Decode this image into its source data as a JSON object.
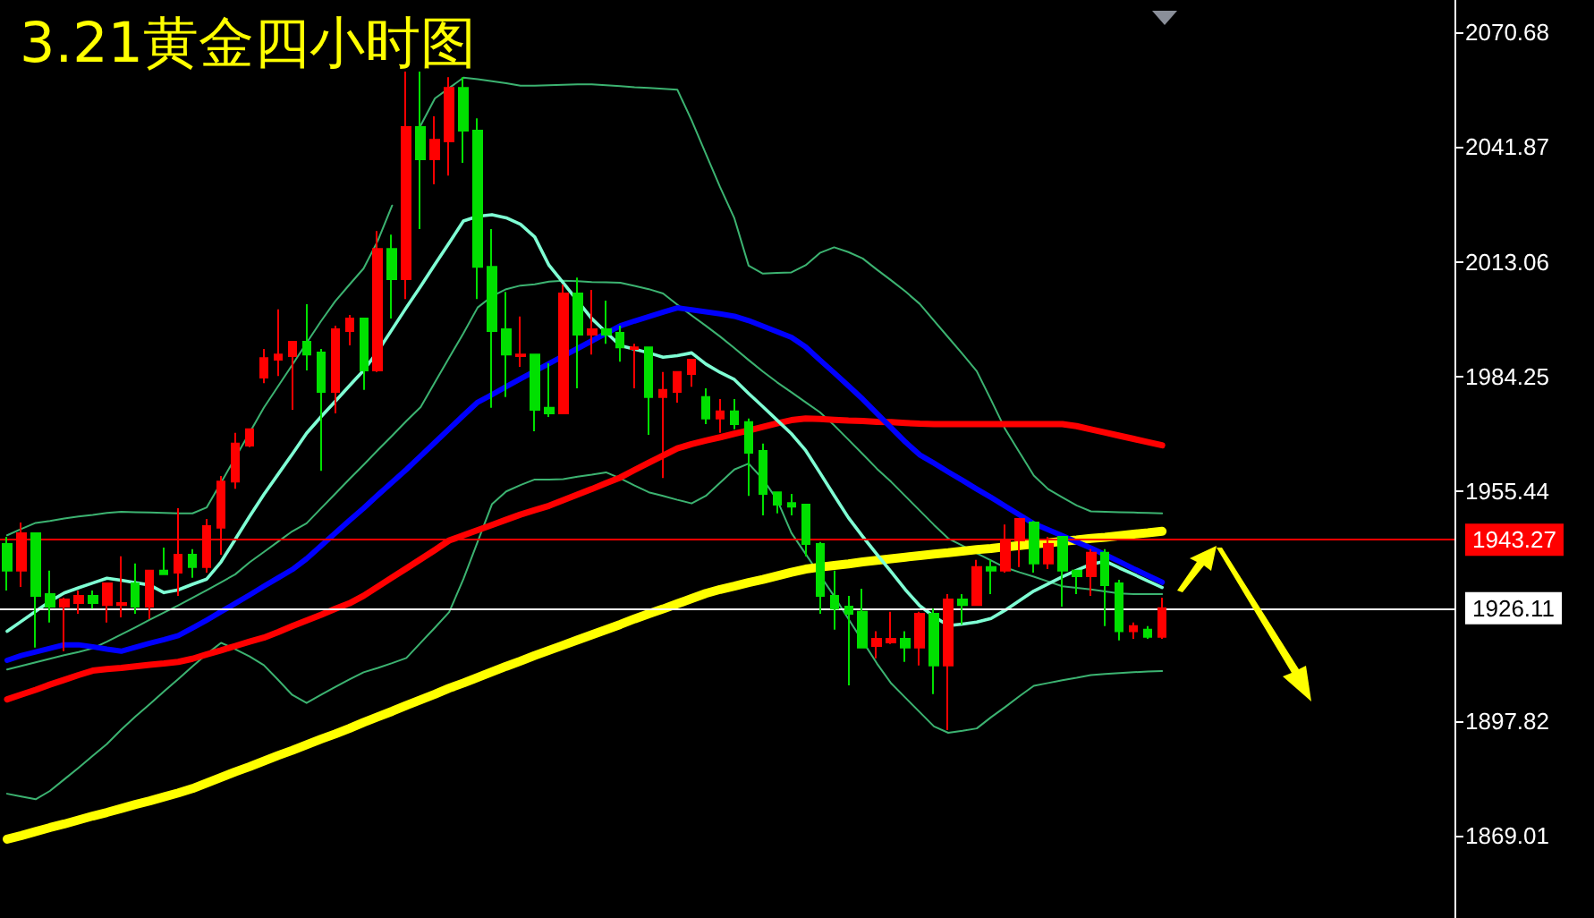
{
  "chart_data": {
    "type": "candlestick",
    "title": "3.21黄金四小时图",
    "categories": [
      null,
      null,
      null,
      null,
      null,
      null,
      null,
      null,
      null,
      null,
      null,
      null,
      null,
      null,
      null,
      null,
      null,
      null,
      null,
      null,
      null,
      null,
      null,
      null,
      null,
      null,
      null,
      null,
      null,
      null,
      null,
      null,
      null,
      null,
      null,
      null,
      null,
      null,
      null,
      null,
      null,
      null,
      null,
      null,
      null,
      null,
      null,
      null,
      null,
      null,
      null,
      null,
      null,
      null,
      null,
      null,
      null,
      null,
      null,
      null,
      null,
      null,
      null,
      null,
      null,
      null,
      null,
      null,
      null,
      null,
      null,
      null,
      null,
      null,
      null,
      null,
      null,
      null,
      null,
      null,
      null,
      null
    ],
    "ohlc": [
      [
        1942.2,
        1944.0,
        1930.5,
        1935.5
      ],
      [
        1935.5,
        1947.6,
        1931.4,
        1944.9
      ],
      [
        1944.9,
        1944.9,
        1916.2,
        1929.2
      ],
      [
        1929.6,
        1935.5,
        1922.5,
        1926.5
      ],
      [
        1926.5,
        1928.7,
        1915.3,
        1928.3
      ],
      [
        1927.4,
        1930.5,
        1924.7,
        1929.2
      ],
      [
        1929.2,
        1930.5,
        1926.0,
        1927.4
      ],
      [
        1926.9,
        1932.3,
        1922.5,
        1932.3
      ],
      [
        1926.9,
        1939.1,
        1923.8,
        1927.4
      ],
      [
        1932.3,
        1937.3,
        1924.7,
        1926.5
      ],
      [
        1926.5,
        1935.5,
        1923.4,
        1935.5
      ],
      [
        1935.5,
        1941.3,
        1934.6,
        1934.6
      ],
      [
        1935.0,
        1951.2,
        1929.2,
        1939.5
      ],
      [
        1939.5,
        1940.9,
        1933.7,
        1936.4
      ],
      [
        1936.4,
        1948.5,
        1935.0,
        1946.7
      ],
      [
        1946.3,
        1959.3,
        1939.5,
        1957.9
      ],
      [
        1957.9,
        1970.1,
        1956.1,
        1967.4
      ],
      [
        1966.9,
        1971.0,
        1966.5,
        1971.0
      ],
      [
        1984.0,
        1991.2,
        1982.6,
        1988.9
      ],
      [
        1988.5,
        2001.1,
        1984.4,
        1989.8
      ],
      [
        1989.4,
        1993.0,
        1975.9,
        1993.0
      ],
      [
        1993.0,
        2002.4,
        1985.8,
        1989.8
      ],
      [
        1990.3,
        1991.2,
        1960.6,
        1980.4
      ],
      [
        1980.4,
        1997.0,
        1975.0,
        1996.1
      ],
      [
        1995.7,
        1999.7,
        1992.1,
        1998.8
      ],
      [
        1998.8,
        1998.8,
        1980.9,
        1985.8
      ],
      [
        1985.8,
        2020.8,
        1985.4,
        2016.3
      ],
      [
        2016.3,
        2019.9,
        1998.8,
        2008.7
      ],
      [
        2008.7,
        2060.8,
        2003.7,
        2046.9
      ],
      [
        2046.9,
        2060.8,
        2021.3,
        2038.8
      ],
      [
        2038.8,
        2049.6,
        2032.5,
        2043.7
      ],
      [
        2043.3,
        2059.4,
        2034.7,
        2056.7
      ],
      [
        2056.7,
        2059.4,
        2037.9,
        2046.0
      ],
      [
        2046.0,
        2049.1,
        2003.7,
        2011.8
      ],
      [
        2011.8,
        2021.3,
        1976.4,
        1995.7
      ],
      [
        1996.1,
        2005.5,
        1979.1,
        1989.8
      ],
      [
        1989.4,
        1999.3,
        1986.7,
        1989.8
      ],
      [
        1989.8,
        1989.8,
        1970.5,
        1975.9
      ],
      [
        1976.4,
        1987.6,
        1974.1,
        1975.0
      ],
      [
        1975.0,
        2007.3,
        1975.0,
        2005.1
      ],
      [
        2005.1,
        2009.1,
        1981.3,
        1994.8
      ],
      [
        1994.8,
        2006.0,
        1989.8,
        1996.1
      ],
      [
        1996.1,
        2003.3,
        1992.5,
        1994.8
      ],
      [
        1995.2,
        1997.0,
        1988.0,
        1991.6
      ],
      [
        1991.2,
        1992.5,
        1981.3,
        1991.6
      ],
      [
        1991.6,
        1991.6,
        1969.6,
        1979.1
      ],
      [
        1979.1,
        1985.4,
        1958.8,
        1980.9
      ],
      [
        1980.4,
        1985.4,
        1977.7,
        1985.4
      ],
      [
        1984.9,
        1988.5,
        1981.7,
        1988.5
      ],
      [
        1979.1,
        1981.3,
        1972.3,
        1973.7
      ],
      [
        1973.7,
        1978.6,
        1970.1,
        1975.5
      ],
      [
        1975.5,
        1978.6,
        1971.0,
        1972.3
      ],
      [
        1972.8,
        1973.7,
        1954.3,
        1965.1
      ],
      [
        1965.6,
        1967.4,
        1949.4,
        1954.8
      ],
      [
        1955.2,
        1955.2,
        1949.9,
        1952.1
      ],
      [
        1952.5,
        1954.8,
        1949.4,
        1951.6
      ],
      [
        1952.1,
        1952.1,
        1939.1,
        1942.2
      ],
      [
        1942.2,
        1942.7,
        1924.7,
        1929.2
      ],
      [
        1929.2,
        1935.5,
        1920.7,
        1926.0
      ],
      [
        1926.5,
        1929.2,
        1906.7,
        1924.7
      ],
      [
        1925.2,
        1931.0,
        1916.2,
        1916.2
      ],
      [
        1916.6,
        1920.3,
        1913.5,
        1918.4
      ],
      [
        1917.5,
        1925.2,
        1917.1,
        1918.4
      ],
      [
        1918.4,
        1920.3,
        1912.6,
        1916.2
      ],
      [
        1916.2,
        1925.2,
        1911.7,
        1924.7
      ],
      [
        1924.7,
        1926.0,
        1904.5,
        1911.7
      ],
      [
        1911.7,
        1929.6,
        1895.5,
        1928.3
      ],
      [
        1928.3,
        1929.6,
        1922.0,
        1926.9
      ],
      [
        1926.9,
        1938.2,
        1926.9,
        1936.4
      ],
      [
        1936.4,
        1938.2,
        1929.6,
        1935.5
      ],
      [
        1935.5,
        1947.1,
        1935.0,
        1943.1
      ],
      [
        1943.1,
        1948.5,
        1936.4,
        1948.5
      ],
      [
        1947.6,
        1948.0,
        1935.0,
        1937.3
      ],
      [
        1937.3,
        1944.0,
        1935.9,
        1942.2
      ],
      [
        1944.0,
        1944.0,
        1926.5,
        1935.5
      ],
      [
        1935.5,
        1935.5,
        1929.6,
        1934.1
      ],
      [
        1934.1,
        1940.9,
        1929.2,
        1940.0
      ],
      [
        1940.0,
        1940.9,
        1921.6,
        1931.9
      ],
      [
        1932.3,
        1933.2,
        1918.0,
        1920.3
      ],
      [
        1920.3,
        1922.5,
        1918.4,
        1921.6
      ],
      [
        1920.7,
        1921.6,
        1918.4,
        1918.9
      ],
      [
        1918.9,
        1928.7,
        1918.4,
        1926.1
      ]
    ],
    "series": [
      {
        "type": "line",
        "color": "#3cb371",
        "values": [
          1944.4,
          1946.0,
          1947.5,
          1948.0,
          1948.6,
          1949.1,
          1949.5,
          1950.0,
          1950.3,
          1950.2,
          1950.1,
          1950.0,
          1949.9,
          1949.9,
          1951.4,
          1957.6,
          1963.9,
          1970.1,
          1976.4,
          1981.8,
          1987.2,
          1992.7,
          1998.1,
          2003.1,
          2007.3,
          2011.4,
          2018.4,
          2027.2,
          null,
          2047.3,
          2054.1,
          2056.7,
          2059.3,
          2058.9,
          2058.4,
          2057.9,
          2057.3,
          2057.3,
          2057.4,
          2057.5,
          2057.6,
          2057.6,
          2057.4,
          2057.2,
          2056.9,
          2056.7,
          2056.5,
          2056.3,
          2048.6,
          2040.2,
          2031.8,
          2024.0,
          2012.1,
          2010.1,
          2010.3,
          2010.4,
          2012.2,
          2015.3,
          2016.7,
          2015.5,
          2013.9,
          2011.1,
          2008.4,
          2005.6,
          2002.5,
          1998.3,
          1994.1,
          1989.9,
          1985.6,
          1978.4,
          1971.0,
          1965.2,
          1959.4,
          1956.0,
          1953.9,
          1951.9,
          1950.4,
          1950.3,
          1950.2,
          1950.1,
          1950.0,
          1949.9
        ]
      },
      {
        "type": "line",
        "color": "#3cb371",
        "values": [
          1910.7,
          1911.6,
          1912.5,
          1913.4,
          1914.3,
          1915.1,
          1916.0,
          1917.7,
          1919.5,
          1921.3,
          1923.2,
          1925.0,
          1926.8,
          1928.7,
          1930.6,
          1932.6,
          1934.6,
          1937.6,
          1940.2,
          1942.8,
          1945.4,
          1947.4,
          1951.1,
          1954.8,
          1958.5,
          1962.1,
          1965.8,
          1969.4,
          1973.1,
          1976.6,
          1982.8,
          1989.0,
          1995.1,
          2001.6,
          2004.4,
          2006.2,
          2007.1,
          2007.4,
          2008.1,
          2008.3,
          2008.2,
          2008.0,
          2007.9,
          2007.8,
          2007.0,
          2006.2,
          2005.1,
          2002.3,
          1999.6,
          1997.0,
          1994.3,
          1991.4,
          1988.4,
          1985.5,
          1982.8,
          1980.3,
          1977.8,
          1975.3,
          1972.0,
          1968.4,
          1964.8,
          1961.1,
          1957.8,
          1954.2,
          1950.6,
          1947.0,
          1943.6,
          1941.8,
          1939.9,
          1938.1,
          1936.3,
          1935.1,
          1934.0,
          1932.8,
          1931.6,
          1931.2,
          1930.8,
          1930.3,
          1929.8,
          1929.6,
          1929.6,
          1929.6
        ]
      },
      {
        "type": "line",
        "color": "#3cb371",
        "values": [
          1879.5,
          1878.8,
          1878.1,
          1880.2,
          1883.1,
          1886.0,
          1889.0,
          1892.0,
          1895.6,
          1898.9,
          1902.0,
          1905.2,
          1908.3,
          1911.5,
          1914.6,
          1917.4,
          1915.8,
          1914.0,
          1911.8,
          1908.1,
          1904.3,
          1902.3,
          1904.3,
          1906.3,
          1908.2,
          1910.0,
          1911.1,
          1912.3,
          1913.6,
          1917.4,
          1921.2,
          1925.1,
          1933.4,
          1942.8,
          1952.2,
          1955.4,
          1957.0,
          1958.4,
          1958.4,
          1958.5,
          1959.1,
          1959.6,
          1960.2,
          1958.7,
          1956.9,
          1955.2,
          1954.3,
          1953.3,
          1952.4,
          1954.3,
          1957.6,
          1960.9,
          1962.4,
          1958.5,
          1953.3,
          1945.0,
          1939.7,
          1934.4,
          1929.1,
          1923.4,
          1917.8,
          1912.2,
          1907.2,
          1903.6,
          1900.0,
          1896.4,
          1894.8,
          1895.3,
          1895.9,
          1898.7,
          1901.3,
          1904.0,
          1906.6,
          1907.3,
          1908.0,
          1908.6,
          1909.3,
          1909.6,
          1909.8,
          1910.0,
          1910.2,
          1910.3
        ]
      },
      {
        "type": "line",
        "color": "#ffff00",
        "values": [
          1868.1,
          1869.0,
          1870.0,
          1871.0,
          1871.9,
          1872.9,
          1873.9,
          1874.8,
          1875.8,
          1876.8,
          1877.7,
          1878.7,
          1879.7,
          1880.8,
          1882.2,
          1883.6,
          1885.0,
          1886.3,
          1887.7,
          1889.1,
          1890.4,
          1891.8,
          1893.2,
          1894.5,
          1895.9,
          1897.4,
          1898.8,
          1900.2,
          1901.7,
          1903.1,
          1904.5,
          1906.0,
          1907.3,
          1908.7,
          1910.1,
          1911.5,
          1912.8,
          1914.2,
          1915.5,
          1916.8,
          1918.1,
          1919.4,
          1920.7,
          1922.0,
          1923.4,
          1924.7,
          1925.9,
          1927.2,
          1928.5,
          1929.8,
          1930.8,
          1931.6,
          1932.5,
          1933.3,
          1934.2,
          1935.1,
          1935.9,
          1936.4,
          1936.8,
          1937.2,
          1937.7,
          1938.1,
          1938.5,
          1938.9,
          1939.3,
          1939.7,
          1940.0,
          1940.4,
          1940.8,
          1941.1,
          1941.5,
          1941.8,
          1942.2,
          1942.5,
          1942.9,
          1943.2,
          1943.6,
          1943.9,
          1944.3,
          1944.7,
          1945.0,
          1945.4
        ]
      },
      {
        "type": "line",
        "color": "#ff0000",
        "values": [
          1903.2,
          1904.4,
          1905.6,
          1906.9,
          1908.1,
          1909.3,
          1910.4,
          1910.8,
          1911.1,
          1911.5,
          1911.9,
          1912.2,
          1912.6,
          1913.4,
          1914.5,
          1915.5,
          1916.6,
          1917.7,
          1918.7,
          1920.1,
          1921.6,
          1923.0,
          1924.4,
          1925.9,
          1927.3,
          1929.2,
          1931.5,
          1933.8,
          1936.1,
          1938.4,
          1940.7,
          1943.1,
          1944.4,
          1945.7,
          1947.0,
          1948.3,
          1949.6,
          1950.7,
          1951.8,
          1953.2,
          1954.6,
          1956.0,
          1957.5,
          1958.9,
          1960.8,
          1962.6,
          1964.4,
          1966.2,
          1967.3,
          1968.2,
          1969.0,
          1969.9,
          1970.7,
          1971.6,
          1972.5,
          1973.3,
          1973.7,
          1973.6,
          1973.4,
          1973.2,
          1973.1,
          1972.9,
          1972.8,
          1972.6,
          1972.4,
          1972.3,
          1972.3,
          1972.3,
          1972.3,
          1972.3,
          1972.3,
          1972.3,
          1972.3,
          1972.3,
          1972.3,
          1971.8,
          1971.0,
          1970.2,
          1969.4,
          1968.6,
          1967.8,
          1967.0
        ]
      },
      {
        "type": "line",
        "color": "#0000ff",
        "values": [
          1913.0,
          1914.2,
          1915.1,
          1916.0,
          1916.9,
          1916.9,
          1916.4,
          1915.8,
          1915.3,
          1916.3,
          1917.3,
          1918.2,
          1919.2,
          1921.1,
          1923.1,
          1925.2,
          1927.3,
          1929.4,
          1931.6,
          1933.7,
          1935.8,
          1938.5,
          1941.7,
          1944.9,
          1948.1,
          1951.2,
          1954.5,
          1957.7,
          1960.9,
          1964.3,
          1967.7,
          1971.1,
          1974.5,
          1977.8,
          1979.7,
          1981.7,
          1983.7,
          1985.6,
          1987.5,
          1989.4,
          1991.3,
          1993.2,
          1995.1,
          1997.0,
          1998.2,
          1999.3,
          2000.4,
          2001.5,
          2001.0,
          2000.5,
          2000.0,
          1999.4,
          1998.3,
          1996.9,
          1995.5,
          1994.1,
          1991.7,
          1988.4,
          1985.2,
          1981.9,
          1978.6,
          1975.0,
          1971.4,
          1967.8,
          1964.6,
          1962.5,
          1960.3,
          1958.2,
          1956.0,
          1953.9,
          1951.7,
          1949.5,
          1947.3,
          1945.8,
          1944.3,
          1942.7,
          1941.2,
          1939.5,
          1937.8,
          1936.0,
          1934.3,
          1932.6
        ]
      },
      {
        "type": "line",
        "color": "#7fffd4",
        "values": [
          1920.3,
          1922.8,
          1925.3,
          1927.8,
          1929.9,
          1931.2,
          1932.4,
          1933.6,
          1933.1,
          1932.5,
          1931.9,
          1930.0,
          1930.7,
          1932.1,
          1933.4,
          1937.7,
          1943.4,
          1949.1,
          1954.6,
          1959.7,
          1964.8,
          1970.0,
          1974.1,
          1978.0,
          1981.9,
          1985.8,
          1990.6,
          1996.1,
          2001.6,
          2006.9,
          2012.4,
          2017.8,
          2023.3,
          2024.5,
          2024.9,
          2024.1,
          2022.5,
          2019.3,
          2012.2,
          2007.8,
          2003.3,
          1998.8,
          1995.4,
          1992.0,
          1991.1,
          1990.2,
          1989.1,
          1989.5,
          1990.2,
          1987.4,
          1985.3,
          1983.5,
          1980.0,
          1976.7,
          1973.3,
          1969.9,
          1965.7,
          1960.1,
          1954.4,
          1948.8,
          1944.1,
          1939.6,
          1935.2,
          1930.7,
          1926.7,
          1924.0,
          1921.7,
          1922.1,
          1922.6,
          1923.5,
          1925.6,
          1928.0,
          1930.4,
          1932.2,
          1934.0,
          1935.6,
          1937.1,
          1937.9,
          1936.2,
          1934.6,
          1932.9,
          1931.3
        ]
      }
    ],
    "ylim": [
      1848.3,
      2078.8
    ],
    "yticks": [
      1869.01,
      1897.82,
      1955.44,
      1984.25,
      2013.06,
      2041.87,
      2070.68
    ],
    "ref_lines": [
      {
        "axis": "y",
        "value": 1943.27,
        "label": "1943.27",
        "color": "#ff0000"
      },
      {
        "axis": "y",
        "value": 1926.11,
        "label": "1926.11",
        "color": "#ffffff"
      }
    ]
  }
}
